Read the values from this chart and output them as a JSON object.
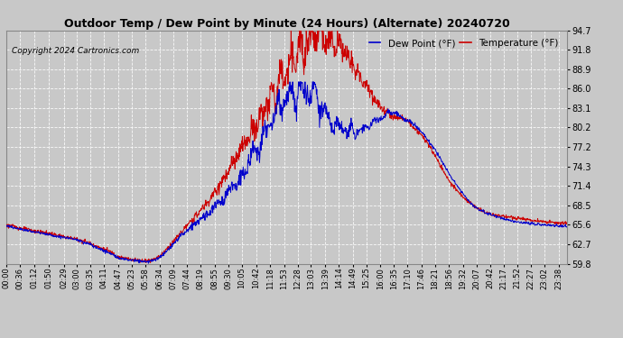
{
  "title": "Outdoor Temp / Dew Point by Minute (24 Hours) (Alternate) 20240720",
  "copyright": "Copyright 2024 Cartronics.com",
  "legend_dew": "Dew Point (°F)",
  "legend_temp": "Temperature (°F)",
  "temp_color": "#cc0000",
  "dew_color": "#0000cc",
  "background_color": "#c8c8c8",
  "plot_bg_color": "#c8c8c8",
  "grid_color": "#ffffff",
  "ylim_min": 59.8,
  "ylim_max": 94.7,
  "yticks": [
    59.8,
    62.7,
    65.6,
    68.5,
    71.4,
    74.3,
    77.2,
    80.2,
    83.1,
    86.0,
    88.9,
    91.8,
    94.7
  ],
  "xtick_labels": [
    "00:00",
    "00:36",
    "01:12",
    "01:50",
    "02:29",
    "03:00",
    "03:35",
    "04:11",
    "04:47",
    "05:23",
    "05:58",
    "06:34",
    "07:09",
    "07:44",
    "08:19",
    "08:55",
    "09:30",
    "10:05",
    "10:42",
    "11:18",
    "11:53",
    "12:28",
    "13:03",
    "13:39",
    "14:14",
    "14:49",
    "15:25",
    "16:00",
    "16:35",
    "17:10",
    "17:46",
    "18:21",
    "18:56",
    "19:32",
    "20:07",
    "20:42",
    "21:17",
    "21:52",
    "22:27",
    "23:02",
    "23:38"
  ]
}
